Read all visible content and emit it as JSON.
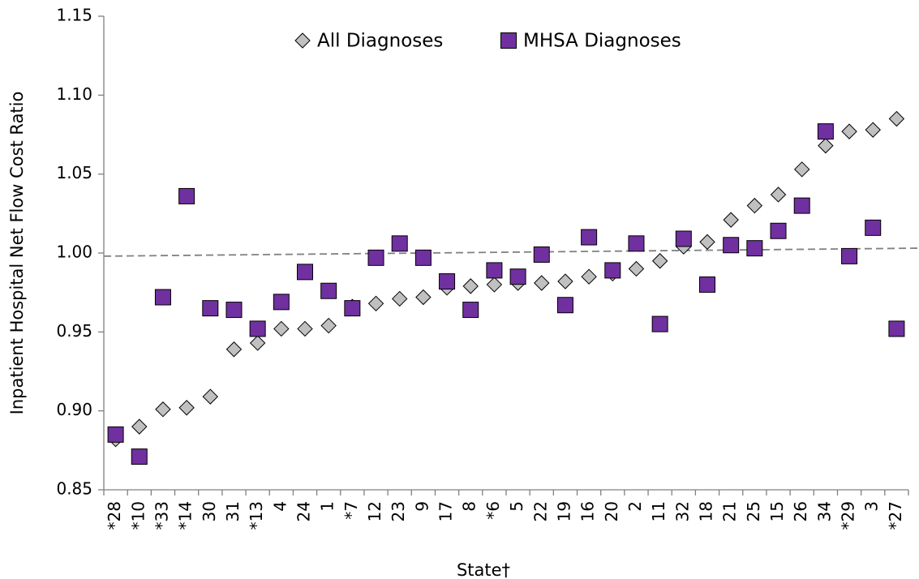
{
  "chart_data": {
    "type": "scatter",
    "y_axis_label": "Inpatient Hospital Net Flow Cost Ratio",
    "x_axis_label": "State†",
    "categories": [
      "*28",
      "*10",
      "*33",
      "*14",
      "30",
      "31",
      "*13",
      "4",
      "24",
      "1",
      "*7",
      "12",
      "23",
      "9",
      "17",
      "8",
      "*6",
      "5",
      "22",
      "19",
      "16",
      "20",
      "2",
      "11",
      "32",
      "18",
      "21",
      "25",
      "15",
      "26",
      "34",
      "*29",
      "3",
      "*27"
    ],
    "series": [
      {
        "name": "All Diagnoses",
        "color": "#c0c0c0",
        "marker": "diamond",
        "values": [
          0.882,
          0.89,
          0.901,
          0.902,
          0.909,
          0.939,
          0.943,
          0.952,
          0.952,
          0.954,
          0.966,
          0.968,
          0.971,
          0.972,
          0.978,
          0.979,
          0.98,
          0.981,
          0.981,
          0.982,
          0.985,
          0.987,
          0.99,
          0.995,
          1.004,
          1.007,
          1.021,
          1.03,
          1.037,
          1.053,
          1.068,
          1.077,
          1.078,
          1.085
        ]
      },
      {
        "name": "MHSA Diagnoses",
        "color": "#7030a0",
        "marker": "square",
        "values": [
          0.885,
          0.871,
          0.972,
          1.036,
          0.965,
          0.964,
          0.952,
          0.969,
          0.988,
          0.976,
          0.965,
          0.997,
          1.006,
          0.997,
          0.982,
          0.964,
          0.989,
          0.985,
          0.999,
          0.967,
          1.01,
          0.989,
          1.006,
          0.955,
          1.009,
          0.98,
          1.005,
          1.003,
          1.014,
          1.03,
          1.077,
          0.998,
          1.016,
          0.952
        ]
      }
    ],
    "trendline": {
      "color": "#808080",
      "values": [
        0.998,
        1.003
      ]
    },
    "ylim": [
      0.85,
      1.15
    ],
    "yticks": [
      0.85,
      {
        "value": 0.9,
        "label": "0.90"
      },
      0.95,
      {
        "value": 1.0,
        "label": "1.00"
      },
      1.05,
      {
        "value": 1.1,
        "label": "1.10"
      },
      1.15
    ],
    "legend": "top"
  }
}
